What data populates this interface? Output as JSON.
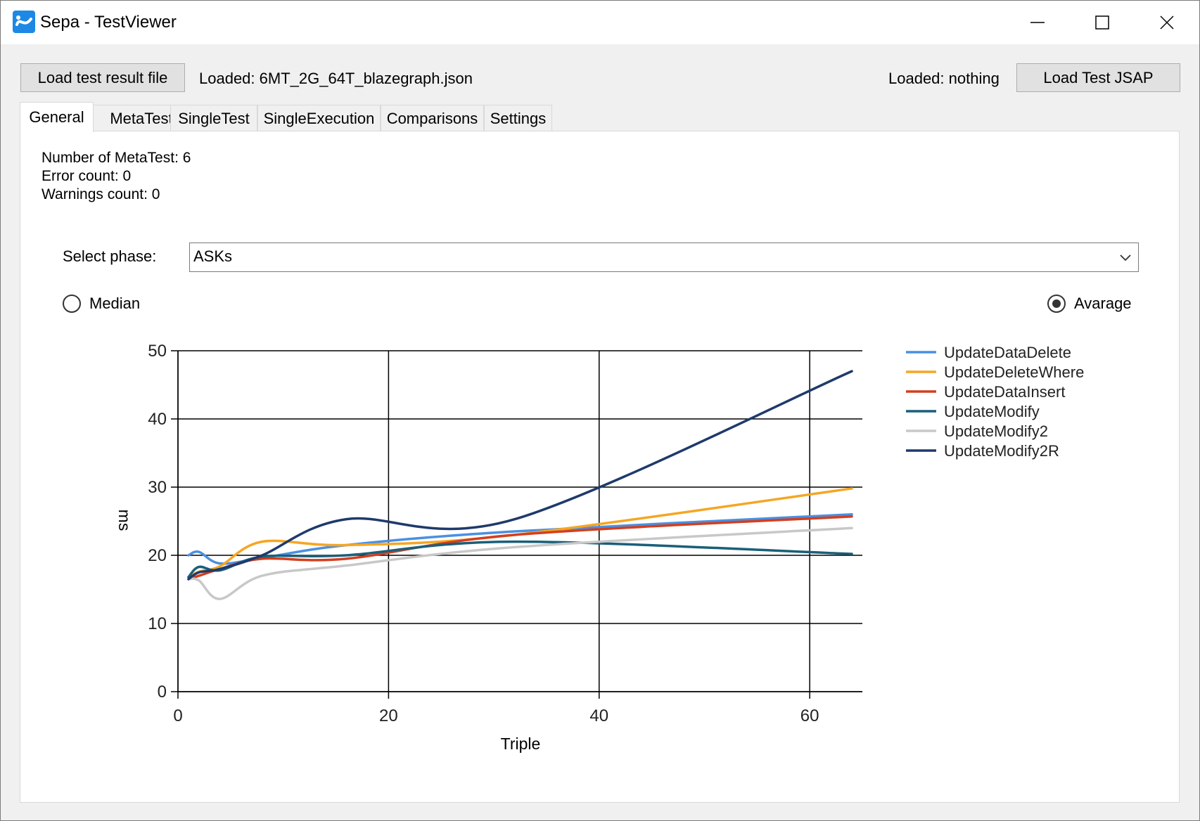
{
  "window": {
    "title": "Sepa - TestViewer"
  },
  "toolbar": {
    "load_result_label": "Load test result file",
    "loaded_result_text": "Loaded: 6MT_2G_64T_blazegraph.json",
    "loaded_jsap_text": "Loaded: nothing",
    "load_jsap_label": "Load Test JSAP"
  },
  "tabs": [
    "General",
    "MetaTest",
    "SingleTest",
    "SingleExecution",
    "Comparisons",
    "Settings"
  ],
  "general": {
    "metatest_count": "Number of MetaTest: 6",
    "error_count": "Error count: 0",
    "warnings_count": "Warnings count: 0",
    "phase_label": "Select phase:",
    "phase_value": "ASKs",
    "radio_median": "Median",
    "radio_average": "Avarage",
    "selected_stat": "Avarage"
  },
  "chart_data": {
    "type": "line",
    "title": "",
    "xlabel": "Triple",
    "ylabel": "ms",
    "xlim": [
      0,
      65
    ],
    "ylim": [
      0,
      50
    ],
    "xticks": [
      0,
      20,
      40,
      60
    ],
    "yticks": [
      0,
      10,
      20,
      30,
      40,
      50
    ],
    "grid": true,
    "legend_position": "right",
    "series": [
      {
        "name": "UpdateDataDelete",
        "color": "#4a90e2",
        "x": [
          1,
          2,
          4,
          8,
          16,
          32,
          64
        ],
        "y": [
          20.0,
          20.5,
          18.8,
          19.6,
          21.5,
          23.5,
          26.0
        ]
      },
      {
        "name": "UpdateDeleteWhere",
        "color": "#f5a623",
        "x": [
          1,
          2,
          4,
          8,
          16,
          32,
          64
        ],
        "y": [
          16.8,
          17.6,
          18.4,
          22.0,
          21.5,
          23.0,
          29.8
        ]
      },
      {
        "name": "UpdateDataInsert",
        "color": "#d33f1f",
        "x": [
          1,
          2,
          4,
          8,
          16,
          32,
          64
        ],
        "y": [
          16.5,
          17.0,
          18.0,
          19.5,
          19.5,
          23.0,
          25.7
        ]
      },
      {
        "name": "UpdateModify",
        "color": "#1a5f7a",
        "x": [
          1,
          2,
          4,
          8,
          16,
          32,
          64
        ],
        "y": [
          16.8,
          18.3,
          17.8,
          19.8,
          20.0,
          22.0,
          20.2
        ]
      },
      {
        "name": "UpdateModify2",
        "color": "#c8c8c8",
        "x": [
          1,
          2,
          4,
          8,
          16,
          32,
          64
        ],
        "y": [
          16.5,
          16.3,
          13.6,
          17.0,
          18.5,
          21.2,
          24.0
        ]
      },
      {
        "name": "UpdateModify2R",
        "color": "#1f3a6b",
        "x": [
          1,
          2,
          4,
          8,
          16,
          32,
          64
        ],
        "y": [
          16.5,
          17.5,
          18.0,
          20.0,
          25.3,
          25.3,
          47.0
        ]
      }
    ]
  }
}
